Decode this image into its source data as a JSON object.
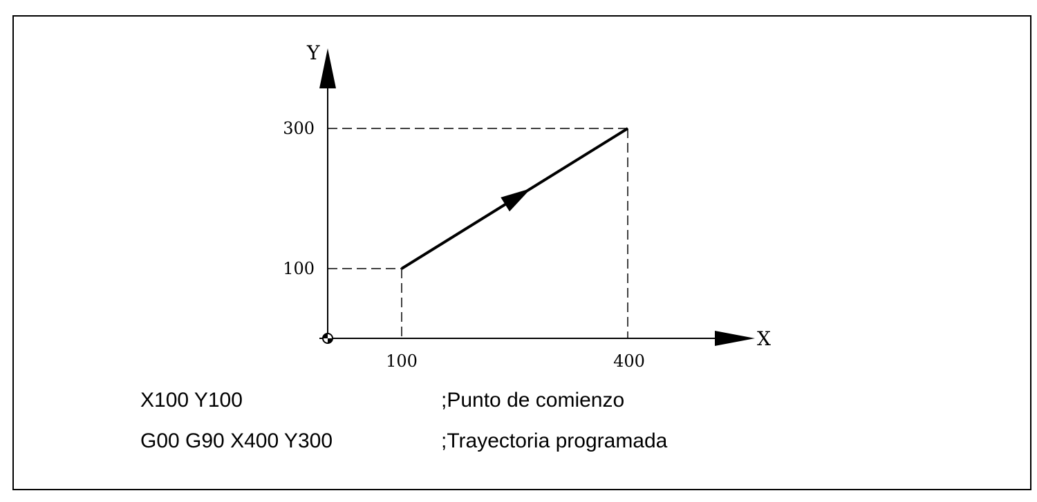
{
  "axes": {
    "x_label": "X",
    "y_label": "Y"
  },
  "ticks": {
    "x": [
      "100",
      "400"
    ],
    "y": [
      "100",
      "300"
    ]
  },
  "path": {
    "start": {
      "x": 100,
      "y": 100
    },
    "end": {
      "x": 400,
      "y": 300
    }
  },
  "program": [
    {
      "code": "X100 Y100",
      "comment": ";Punto de comienzo"
    },
    {
      "code": "G00 G90 X400 Y300",
      "comment": ";Trayectoria programada"
    }
  ],
  "colors": {
    "ink": "#000000",
    "background": "#ffffff"
  }
}
